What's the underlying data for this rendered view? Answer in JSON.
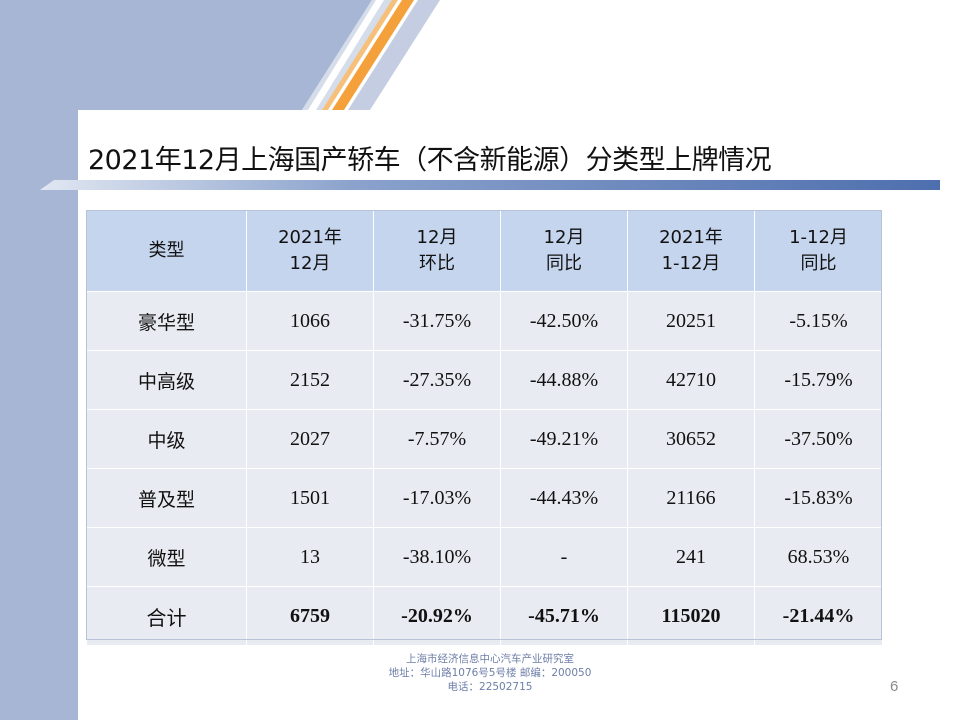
{
  "title": "2021年12月上海国产轿车（不含新能源）分类型上牌情况",
  "table": {
    "headers": [
      [
        "类型",
        ""
      ],
      [
        "2021年",
        "12月"
      ],
      [
        "12月",
        "环比"
      ],
      [
        "12月",
        "同比"
      ],
      [
        "2021年",
        "1-12月"
      ],
      [
        "1-12月",
        "同比"
      ]
    ],
    "rows": [
      [
        "豪华型",
        "1066",
        "-31.75%",
        "-42.50%",
        "20251",
        "-5.15%"
      ],
      [
        "中高级",
        "2152",
        "-27.35%",
        "-44.88%",
        "42710",
        "-15.79%"
      ],
      [
        "中级",
        "2027",
        "-7.57%",
        "-49.21%",
        "30652",
        "-37.50%"
      ],
      [
        "普及型",
        "1501",
        "-17.03%",
        "-44.43%",
        "21166",
        "-15.83%"
      ],
      [
        "微型",
        "13",
        "-38.10%",
        "-",
        "241",
        "68.53%"
      ],
      [
        "合计",
        "6759",
        "-20.92%",
        "-45.71%",
        "115020",
        "-21.44%"
      ]
    ]
  },
  "footer": {
    "line1": "上海市经济信息中心汽车产业研究室",
    "line2": "地址：华山路1076号5号楼   邮编：200050",
    "line3": "电话：22502715"
  },
  "page_number": "6",
  "colors": {
    "header_bg": "#c6d5ee",
    "row_bg": "#e9ebf2",
    "side_band": "#a7b6d4",
    "accent_orange": "#f4a13c"
  }
}
